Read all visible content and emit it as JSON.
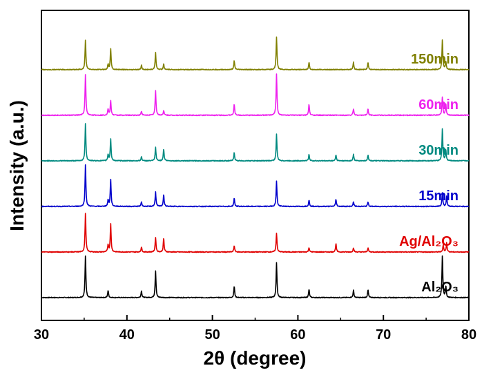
{
  "chart_data": {
    "type": "line",
    "title": "",
    "xlabel": "2θ (degree)",
    "ylabel": "Intensity (a.u.)",
    "xlim": [
      30,
      80
    ],
    "x_ticks": [
      "30",
      "40",
      "50",
      "60",
      "70",
      "80"
    ],
    "y_ticks_visible": false,
    "grid": false,
    "legend": "none",
    "stack_offset": 1.0,
    "ylim": [
      -0.5,
      6.3
    ],
    "peak_width": 0.09,
    "series": [
      {
        "name": "Al₂O₃",
        "color": "#000000",
        "baseline": 0,
        "peaks": [
          [
            35.15,
            0.92
          ],
          [
            37.8,
            0.16
          ],
          [
            41.7,
            0.15
          ],
          [
            43.35,
            0.6
          ],
          [
            52.55,
            0.25
          ],
          [
            57.5,
            0.76
          ],
          [
            61.3,
            0.18
          ],
          [
            66.5,
            0.16
          ],
          [
            68.2,
            0.17
          ],
          [
            76.9,
            0.92
          ],
          [
            77.3,
            0.25
          ]
        ]
      },
      {
        "name": "Ag/Al₂O₃",
        "color": "#e00000",
        "baseline": 1,
        "peaks": [
          [
            35.15,
            0.86
          ],
          [
            37.8,
            0.16
          ],
          [
            38.1,
            0.62
          ],
          [
            41.7,
            0.11
          ],
          [
            43.35,
            0.33
          ],
          [
            44.3,
            0.3
          ],
          [
            52.55,
            0.14
          ],
          [
            57.5,
            0.42
          ],
          [
            61.3,
            0.1
          ],
          [
            64.45,
            0.18
          ],
          [
            66.5,
            0.09
          ],
          [
            68.2,
            0.09
          ],
          [
            77.0,
            0.16
          ],
          [
            77.4,
            0.2
          ]
        ]
      },
      {
        "name": "15min",
        "color": "#0000cc",
        "baseline": 2,
        "peaks": [
          [
            35.15,
            0.92
          ],
          [
            37.8,
            0.14
          ],
          [
            38.1,
            0.6
          ],
          [
            41.7,
            0.1
          ],
          [
            43.35,
            0.32
          ],
          [
            44.3,
            0.26
          ],
          [
            52.55,
            0.18
          ],
          [
            57.5,
            0.55
          ],
          [
            61.3,
            0.14
          ],
          [
            64.45,
            0.16
          ],
          [
            66.5,
            0.1
          ],
          [
            68.2,
            0.1
          ],
          [
            76.9,
            0.3
          ],
          [
            77.4,
            0.22
          ]
        ]
      },
      {
        "name": "30min",
        "color": "#008a80",
        "baseline": 3,
        "peaks": [
          [
            35.15,
            0.82
          ],
          [
            37.8,
            0.14
          ],
          [
            38.1,
            0.48
          ],
          [
            41.7,
            0.09
          ],
          [
            43.35,
            0.3
          ],
          [
            44.3,
            0.26
          ],
          [
            52.55,
            0.18
          ],
          [
            57.5,
            0.58
          ],
          [
            61.3,
            0.14
          ],
          [
            64.45,
            0.13
          ],
          [
            66.5,
            0.14
          ],
          [
            68.2,
            0.13
          ],
          [
            76.9,
            0.7
          ],
          [
            77.3,
            0.24
          ]
        ]
      },
      {
        "name": "60min",
        "color": "#ee22ee",
        "baseline": 4,
        "peaks": [
          [
            35.15,
            0.9
          ],
          [
            37.8,
            0.14
          ],
          [
            38.1,
            0.32
          ],
          [
            41.7,
            0.09
          ],
          [
            43.35,
            0.55
          ],
          [
            44.3,
            0.1
          ],
          [
            52.55,
            0.24
          ],
          [
            57.5,
            0.9
          ],
          [
            61.3,
            0.24
          ],
          [
            66.5,
            0.14
          ],
          [
            68.2,
            0.14
          ],
          [
            76.9,
            0.4
          ],
          [
            77.3,
            0.25
          ]
        ]
      },
      {
        "name": "150min",
        "color": "#808000",
        "baseline": 5,
        "peaks": [
          [
            35.15,
            0.65
          ],
          [
            37.8,
            0.12
          ],
          [
            38.1,
            0.46
          ],
          [
            41.7,
            0.1
          ],
          [
            43.35,
            0.38
          ],
          [
            44.3,
            0.12
          ],
          [
            52.55,
            0.2
          ],
          [
            57.5,
            0.72
          ],
          [
            61.3,
            0.16
          ],
          [
            66.5,
            0.16
          ],
          [
            68.2,
            0.16
          ],
          [
            76.9,
            0.65
          ],
          [
            77.3,
            0.18
          ]
        ]
      }
    ]
  }
}
